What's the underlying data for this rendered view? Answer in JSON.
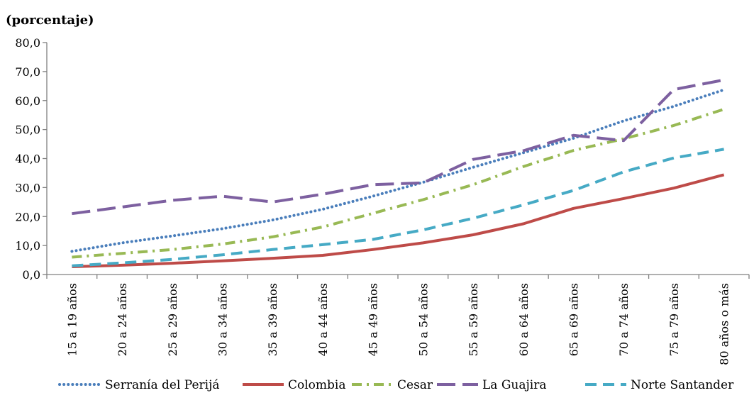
{
  "chart_data": {
    "type": "line",
    "unit_label": "(porcentaje)",
    "title": "",
    "xlabel": "",
    "ylabel": "",
    "ylim": [
      0,
      80
    ],
    "y_ticks": [
      "0,0",
      "10,0",
      "20,0",
      "30,0",
      "40,0",
      "50,0",
      "60,0",
      "70,0",
      "80,0"
    ],
    "categories": [
      "15 a 19 años",
      "20 a 24 años",
      "25 a 29 años",
      "30 a 34 años",
      "35 a 39 años",
      "40 a 44 años",
      "45 a 49 años",
      "50 a 54 años",
      "55 a 59 años",
      "60 a 64 años",
      "65 a 69 años",
      "70 a 74 años",
      "75 a 79 años",
      "80 años o más"
    ],
    "grid": false,
    "legend_position": "bottom",
    "series": [
      {
        "name": "Serranía del Perijá",
        "color": "#4a7ebb",
        "dash": "dotted",
        "values": [
          8.0,
          10.9,
          13.3,
          15.8,
          18.8,
          22.5,
          27.0,
          31.8,
          37.0,
          42.0,
          47.0,
          53.0,
          58.0,
          63.7
        ]
      },
      {
        "name": "Colombia",
        "color": "#be4b48",
        "dash": "solid",
        "values": [
          2.7,
          3.2,
          3.9,
          4.7,
          5.6,
          6.6,
          8.6,
          10.9,
          13.7,
          17.5,
          22.8,
          26.2,
          29.8,
          34.4
        ]
      },
      {
        "name": "Cesar",
        "color": "#98b954",
        "dash": "dashdot",
        "values": [
          6.0,
          7.3,
          8.6,
          10.5,
          13.0,
          16.4,
          21.1,
          25.8,
          31.0,
          37.2,
          42.8,
          46.8,
          51.4,
          57.0
        ]
      },
      {
        "name": "La Guajira",
        "color": "#7d60a0",
        "dash": "longdash",
        "values": [
          21.0,
          23.3,
          25.6,
          27.0,
          25.0,
          27.7,
          31.0,
          31.6,
          39.7,
          42.7,
          48.0,
          46.2,
          63.8,
          67.1
        ]
      },
      {
        "name": "Norte Santander",
        "color": "#46aac5",
        "dash": "dash",
        "values": [
          3.0,
          4.0,
          5.2,
          6.8,
          8.6,
          10.3,
          12.1,
          15.4,
          19.4,
          24.0,
          29.0,
          35.4,
          40.2,
          43.2
        ]
      }
    ]
  }
}
